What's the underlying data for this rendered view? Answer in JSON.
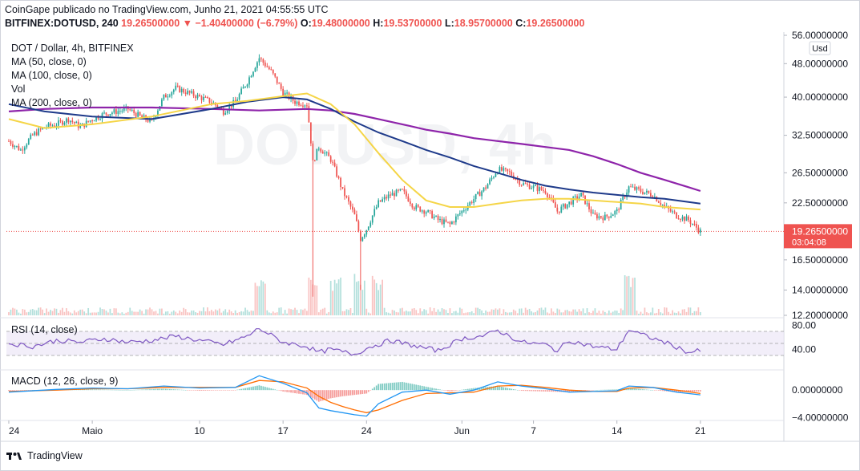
{
  "header": {
    "publisher_line": "CoinGape publicado no TradingView.com, Junho 21, 2021 04:55:55 UTC",
    "symbol": "BITFINEX:DOTUSD, 240",
    "last": "19.26500000",
    "change": "▼ −1.40400000 (−6.79%)",
    "open_label": "O:",
    "open": "19.48000000",
    "high_label": "H:",
    "high": "19.53700000",
    "low_label": "L:",
    "low": "18.95700000",
    "close_label": "C:",
    "close": "19.26500000"
  },
  "legend": {
    "title": "DOT / Dollar, 4h, BITFINEX",
    "ma50": "MA (50, close, 0)",
    "ma100": "MA (100, close, 0)",
    "vol": "Vol",
    "ma200": "MA (200, close, 0)",
    "rsi": "RSI (14, close)",
    "macd": "MACD (12, 26, close, 9)"
  },
  "price_axis": {
    "currency_badge": "Usd",
    "current_price": "19.26500000",
    "countdown": "03:04:08"
  },
  "footer": {
    "brand": "TradingView"
  },
  "colors": {
    "up": "#26a69a",
    "down": "#ef5350",
    "ma50": "#f5d547",
    "ma100": "#1e3a8a",
    "ma200": "#8e24aa",
    "rsi": "#7e57c2",
    "macd": "#2196f3",
    "signal": "#ff6d00"
  },
  "chart_data": [
    {
      "type": "candlestick",
      "title": "DOT / Dollar, 4h, BITFINEX",
      "price_ticks": [
        "56.00000000",
        "48.00000000",
        "40.00000000",
        "32.50000000",
        "26.50000000",
        "22.50000000",
        "16.50000000",
        "14.00000000",
        "12.20000000"
      ],
      "price_tick_values": [
        56,
        48,
        40,
        32.5,
        26.5,
        22.5,
        16.5,
        14,
        12.2
      ],
      "ylim": [
        12.2,
        56
      ],
      "log_scale": true,
      "x_ticks": [
        "24",
        "Maio",
        "10",
        "17",
        "24",
        "Jun",
        "7",
        "14",
        "21"
      ],
      "x_tick_days": [
        -7,
        0,
        9,
        16,
        23,
        31,
        37,
        44,
        51
      ],
      "x_range_days": [
        -7.2,
        58
      ],
      "close_path": [
        [
          -7.0,
          31.5
        ],
        [
          -6.0,
          30.0
        ],
        [
          -5.0,
          32.5
        ],
        [
          -4.0,
          34.0
        ],
        [
          -3.0,
          34.5
        ],
        [
          -2.0,
          35.5
        ],
        [
          -1.0,
          34.0
        ],
        [
          0.0,
          35.5
        ],
        [
          1.0,
          36.5
        ],
        [
          2.0,
          37.0
        ],
        [
          3.0,
          37.5
        ],
        [
          4.0,
          36.0
        ],
        [
          5.0,
          35.0
        ],
        [
          6.0,
          40.0
        ],
        [
          7.0,
          42.0
        ],
        [
          8.0,
          41.0
        ],
        [
          9.0,
          40.0
        ],
        [
          10.0,
          39.0
        ],
        [
          11.0,
          37.0
        ],
        [
          12.0,
          39.0
        ],
        [
          13.0,
          43.5
        ],
        [
          14.0,
          49.5
        ],
        [
          15.0,
          46.0
        ],
        [
          16.0,
          41.0
        ],
        [
          17.0,
          39.0
        ],
        [
          18.0,
          38.5
        ],
        [
          18.5,
          28.0
        ],
        [
          19.0,
          30.5
        ],
        [
          20.0,
          28.5
        ],
        [
          21.0,
          24.0
        ],
        [
          22.0,
          21.0
        ],
        [
          22.5,
          18.5
        ],
        [
          23.0,
          19.5
        ],
        [
          24.0,
          22.5
        ],
        [
          25.0,
          23.5
        ],
        [
          26.0,
          24.0
        ],
        [
          27.0,
          22.0
        ],
        [
          28.0,
          21.5
        ],
        [
          29.0,
          20.5
        ],
        [
          30.0,
          20.0
        ],
        [
          31.0,
          21.5
        ],
        [
          32.0,
          23.0
        ],
        [
          33.0,
          24.5
        ],
        [
          34.0,
          27.0
        ],
        [
          35.0,
          26.5
        ],
        [
          36.0,
          25.0
        ],
        [
          37.0,
          24.5
        ],
        [
          38.0,
          24.0
        ],
        [
          39.0,
          21.5
        ],
        [
          40.0,
          22.5
        ],
        [
          41.0,
          23.5
        ],
        [
          42.0,
          21.0
        ],
        [
          43.0,
          20.8
        ],
        [
          44.0,
          21.5
        ],
        [
          45.0,
          24.5
        ],
        [
          46.0,
          24.0
        ],
        [
          47.0,
          23.5
        ],
        [
          48.0,
          22.0
        ],
        [
          49.0,
          21.0
        ],
        [
          50.0,
          20.5
        ],
        [
          51.0,
          19.265
        ]
      ],
      "ma50_path": [
        [
          -7.0,
          35.5
        ],
        [
          -4.0,
          33.8
        ],
        [
          0.0,
          34.5
        ],
        [
          5.0,
          36.0
        ],
        [
          10.0,
          38.5
        ],
        [
          13.0,
          39.2
        ],
        [
          16.0,
          40.2
        ],
        [
          18.0,
          40.8
        ],
        [
          20.0,
          38.5
        ],
        [
          22.0,
          34.5
        ],
        [
          24.0,
          29.5
        ],
        [
          26.0,
          25.5
        ],
        [
          28.0,
          22.8
        ],
        [
          30.0,
          22.0
        ],
        [
          32.0,
          22.0
        ],
        [
          34.0,
          22.4
        ],
        [
          36.0,
          22.8
        ],
        [
          38.0,
          23.0
        ],
        [
          40.0,
          23.0
        ],
        [
          42.0,
          22.8
        ],
        [
          44.0,
          22.6
        ],
        [
          46.0,
          22.4
        ],
        [
          48.0,
          22.0
        ],
        [
          50.0,
          21.8
        ],
        [
          51.0,
          21.7
        ]
      ],
      "ma100_path": [
        [
          -7.0,
          38.5
        ],
        [
          -4.0,
          37.0
        ],
        [
          0.0,
          36.0
        ],
        [
          5.0,
          35.5
        ],
        [
          10.0,
          37.5
        ],
        [
          13.0,
          39.0
        ],
        [
          16.0,
          40.0
        ],
        [
          18.0,
          39.5
        ],
        [
          20.0,
          37.5
        ],
        [
          22.0,
          35.0
        ],
        [
          24.0,
          33.0
        ],
        [
          26.0,
          31.5
        ],
        [
          28.0,
          30.0
        ],
        [
          30.0,
          28.8
        ],
        [
          32.0,
          27.5
        ],
        [
          34.0,
          26.5
        ],
        [
          36.0,
          25.5
        ],
        [
          38.0,
          24.7
        ],
        [
          40.0,
          24.2
        ],
        [
          42.0,
          23.8
        ],
        [
          44.0,
          23.5
        ],
        [
          46.0,
          23.2
        ],
        [
          48.0,
          23.0
        ],
        [
          50.0,
          22.6
        ],
        [
          51.0,
          22.4
        ]
      ],
      "ma200_path": [
        [
          -7.0,
          37.0
        ],
        [
          -4.0,
          37.5
        ],
        [
          0.0,
          37.8
        ],
        [
          5.0,
          37.8
        ],
        [
          10.0,
          37.5
        ],
        [
          14.0,
          37.2
        ],
        [
          18.0,
          37.5
        ],
        [
          20.0,
          37.2
        ],
        [
          22.0,
          36.5
        ],
        [
          24.0,
          35.5
        ],
        [
          26.0,
          34.5
        ],
        [
          28.0,
          33.5
        ],
        [
          30.0,
          32.8
        ],
        [
          32.0,
          32.0
        ],
        [
          34.0,
          31.5
        ],
        [
          36.0,
          31.0
        ],
        [
          38.0,
          30.5
        ],
        [
          40.0,
          30.0
        ],
        [
          42.0,
          29.0
        ],
        [
          44.0,
          27.8
        ],
        [
          46.0,
          26.5
        ],
        [
          48.0,
          25.5
        ],
        [
          50.0,
          24.5
        ],
        [
          51.0,
          24.0
        ]
      ]
    },
    {
      "type": "volume",
      "spikes_days": [
        18.5,
        22.5,
        20.5,
        24.0,
        14.0,
        45.0
      ]
    },
    {
      "type": "line",
      "title": "RSI (14, close)",
      "y_ticks": [
        "80.00",
        "40.00"
      ],
      "y_tick_values": [
        80,
        40
      ],
      "ylim": [
        10,
        90
      ],
      "band": [
        30,
        70
      ],
      "values_path": [
        [
          -7,
          50
        ],
        [
          -5,
          45
        ],
        [
          -3,
          55
        ],
        [
          -1,
          52
        ],
        [
          1,
          58
        ],
        [
          3,
          52
        ],
        [
          5,
          55
        ],
        [
          7,
          62
        ],
        [
          9,
          55
        ],
        [
          11,
          48
        ],
        [
          13,
          62
        ],
        [
          14,
          75
        ],
        [
          16,
          52
        ],
        [
          18,
          45
        ],
        [
          19,
          35
        ],
        [
          20,
          40
        ],
        [
          22,
          32
        ],
        [
          23,
          42
        ],
        [
          25,
          55
        ],
        [
          27,
          46
        ],
        [
          29,
          38
        ],
        [
          31,
          58
        ],
        [
          33,
          63
        ],
        [
          34,
          72
        ],
        [
          36,
          52
        ],
        [
          38,
          48
        ],
        [
          39,
          38
        ],
        [
          40,
          55
        ],
        [
          42,
          45
        ],
        [
          44,
          40
        ],
        [
          45,
          73
        ],
        [
          46,
          65
        ],
        [
          48,
          52
        ],
        [
          49,
          44
        ],
        [
          50,
          35
        ],
        [
          51,
          38
        ]
      ]
    },
    {
      "type": "line",
      "title": "MACD (12, 26, close, 9)",
      "y_ticks": [
        "0.00000000",
        "−4.00000000"
      ],
      "y_tick_values": [
        0,
        -4
      ],
      "ylim": [
        -4.2,
        2.6
      ],
      "macd_path": [
        [
          -7,
          -0.3
        ],
        [
          -3,
          0.1
        ],
        [
          0,
          0.3
        ],
        [
          3,
          0.2
        ],
        [
          6,
          0.6
        ],
        [
          9,
          0.3
        ],
        [
          12,
          0.4
        ],
        [
          14,
          2.1
        ],
        [
          16,
          1.0
        ],
        [
          18,
          -0.4
        ],
        [
          19,
          -2.6
        ],
        [
          20,
          -3.0
        ],
        [
          21,
          -3.3
        ],
        [
          22,
          -3.6
        ],
        [
          23,
          -3.8
        ],
        [
          24,
          -2.0
        ],
        [
          26,
          -0.3
        ],
        [
          28,
          0.0
        ],
        [
          30,
          -0.6
        ],
        [
          32,
          0.0
        ],
        [
          34,
          1.2
        ],
        [
          36,
          0.6
        ],
        [
          38,
          0.2
        ],
        [
          40,
          -0.3
        ],
        [
          42,
          -0.2
        ],
        [
          44,
          -0.1
        ],
        [
          45,
          0.6
        ],
        [
          47,
          0.4
        ],
        [
          49,
          -0.3
        ],
        [
          51,
          -0.7
        ]
      ],
      "signal_path": [
        [
          -7,
          -0.2
        ],
        [
          -3,
          0.0
        ],
        [
          0,
          0.2
        ],
        [
          3,
          0.2
        ],
        [
          6,
          0.4
        ],
        [
          9,
          0.4
        ],
        [
          12,
          0.4
        ],
        [
          14,
          1.4
        ],
        [
          16,
          1.2
        ],
        [
          18,
          0.3
        ],
        [
          19,
          -0.9
        ],
        [
          20,
          -1.8
        ],
        [
          21,
          -2.4
        ],
        [
          22,
          -2.9
        ],
        [
          23,
          -3.3
        ],
        [
          24,
          -2.9
        ],
        [
          26,
          -1.5
        ],
        [
          28,
          -0.5
        ],
        [
          30,
          -0.4
        ],
        [
          32,
          -0.3
        ],
        [
          34,
          0.6
        ],
        [
          36,
          0.7
        ],
        [
          38,
          0.4
        ],
        [
          40,
          0.0
        ],
        [
          42,
          -0.2
        ],
        [
          44,
          -0.2
        ],
        [
          45,
          0.3
        ],
        [
          47,
          0.4
        ],
        [
          49,
          0.0
        ],
        [
          51,
          -0.5
        ]
      ]
    }
  ]
}
